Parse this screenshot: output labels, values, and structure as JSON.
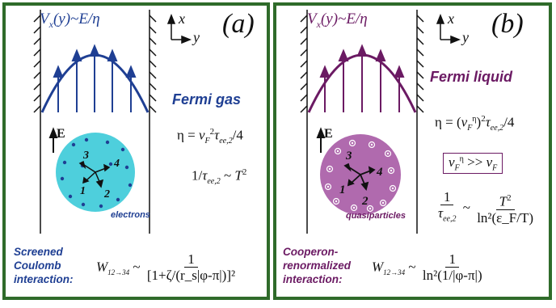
{
  "panel_a": {
    "flow_label": "V_x(y) ~ E/η",
    "axis_x": "x",
    "axis_y": "y",
    "tag": "(a)",
    "title": "Fermi gas",
    "field_label": "E",
    "eta_formula": "η = v_F² τ_ee,2/4",
    "tau_formula": "1/τ_ee,2 ~ T²",
    "particle_numbers": [
      "3",
      "4",
      "1",
      "2"
    ],
    "particle_caption": "electrons",
    "interaction_label": [
      "Screened",
      "Coulomb",
      "interaction:"
    ],
    "w_label": "W",
    "w_sub": "12→34",
    "w_tilde": "~",
    "w_num": "1",
    "w_den": "[1+ζ/(r_s|φ-π|)]²"
  },
  "panel_b": {
    "flow_label": "V_x(y) ~ E/η",
    "axis_x": "x",
    "axis_y": "y",
    "tag": "(b)",
    "title": "Fermi liquid",
    "field_label": "E",
    "eta_formula": "η = (v_F^η)² τ_ee,2/4",
    "boxed_formula": "v_F^η >> v_F",
    "tau_num": "1",
    "tau_den": "τ_ee,2",
    "tau_tilde": "~",
    "tau_rhs_num": "T²",
    "tau_rhs_den": "ln²(ε_F/T)",
    "particle_numbers": [
      "3",
      "4",
      "1",
      "2"
    ],
    "particle_caption": "quasiparticles",
    "interaction_label": [
      "Cooperon-",
      "renormalized",
      "interaction:"
    ],
    "w_label": "W",
    "w_sub": "12→34",
    "w_tilde": "~",
    "w_num": "1",
    "w_den": "ln²(1/|φ-π|)"
  },
  "colors": {
    "frame_green": "#2f6b2a",
    "gas_blue": "#1f3f93",
    "gas_circle": "#4ecfdc",
    "liquid_purple": "#6b1a63",
    "liquid_circle": "#b06aae"
  }
}
